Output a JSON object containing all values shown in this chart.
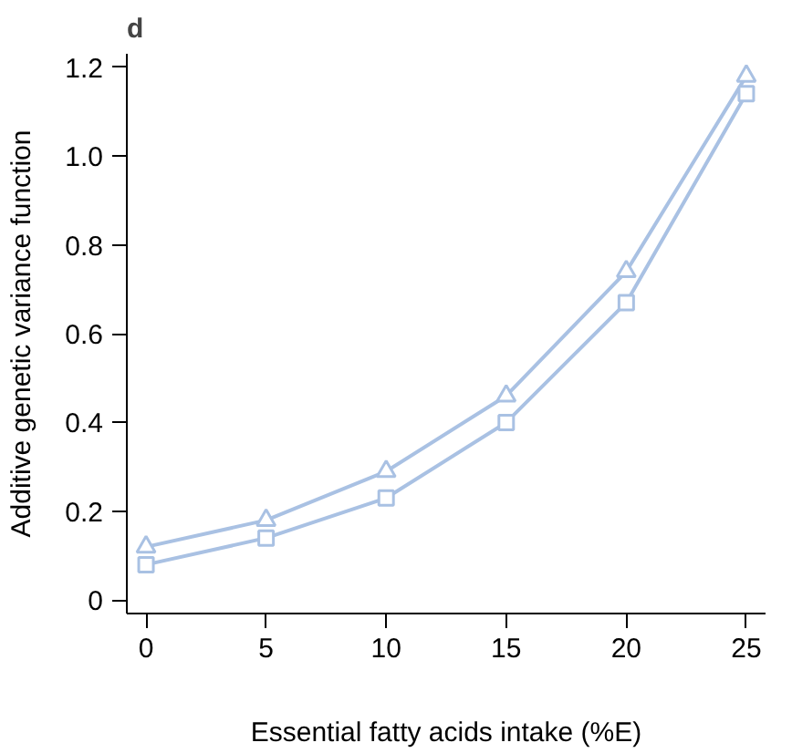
{
  "chart_data": {
    "type": "line",
    "xlabel": "Essential fatty acids intake (%E)",
    "ylabel": "Additive genetic variance function",
    "annotations": [
      "d"
    ],
    "x": [
      0,
      5,
      10,
      15,
      20,
      25
    ],
    "series": [
      {
        "color": "#a9c1e3",
        "marker": "triangle",
        "values": [
          0.12,
          0.18,
          0.29,
          0.46,
          0.74,
          1.18
        ]
      },
      {
        "color": "#a9c1e3",
        "marker": "square",
        "values": [
          0.08,
          0.14,
          0.23,
          0.4,
          0.67,
          1.14
        ]
      }
    ],
    "xlim": [
      -0.8,
      25.8
    ],
    "ylim": [
      -0.03,
      1.23
    ],
    "xticks": [
      0,
      5,
      10,
      15,
      20,
      25
    ],
    "yticks": [
      0,
      {
        "value": 0.2,
        "label": "0.2"
      },
      {
        "value": 0.4,
        "label": "0.4"
      },
      {
        "value": 0.6,
        "label": "0.6"
      },
      {
        "value": 0.8,
        "label": "0.8"
      },
      {
        "value": 1.0,
        "label": "1.0"
      },
      {
        "value": 1.2,
        "label": "1.2"
      }
    ],
    "grid": false,
    "line_style": "solid"
  }
}
